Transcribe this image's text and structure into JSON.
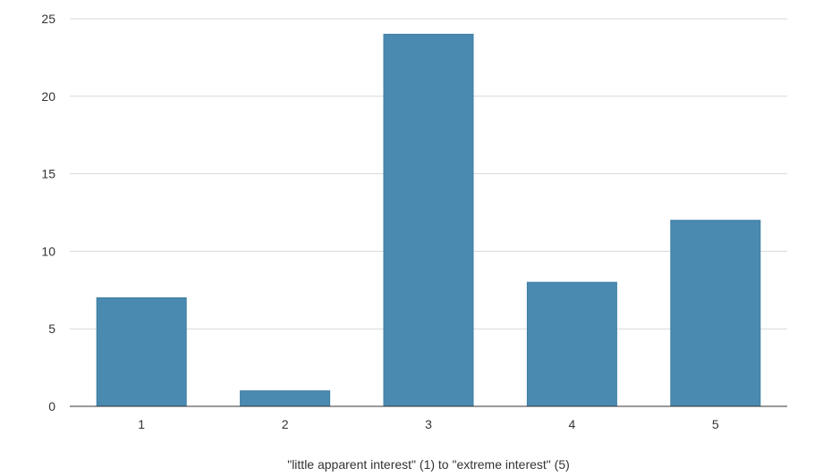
{
  "chart_data": {
    "type": "bar",
    "title": "",
    "xlabel": "\"little apparent interest\" (1) to \"extreme interest\" (5)",
    "ylabel": "",
    "categories": [
      "1",
      "2",
      "3",
      "4",
      "5"
    ],
    "series": [
      {
        "values": [
          7,
          1,
          24,
          8,
          12
        ]
      }
    ],
    "ylim": [
      0,
      25
    ],
    "yticks": [
      0,
      5,
      10,
      15,
      20,
      25
    ],
    "ytick_labels": [
      "0",
      "5",
      "10",
      "15",
      "20",
      "25"
    ],
    "grid": true,
    "legend": "none",
    "colors": {
      "bar": "#4a8ab0",
      "bar_edge": "#3d7da3",
      "grid": "#d9d9d9",
      "axis": "#333333"
    }
  }
}
